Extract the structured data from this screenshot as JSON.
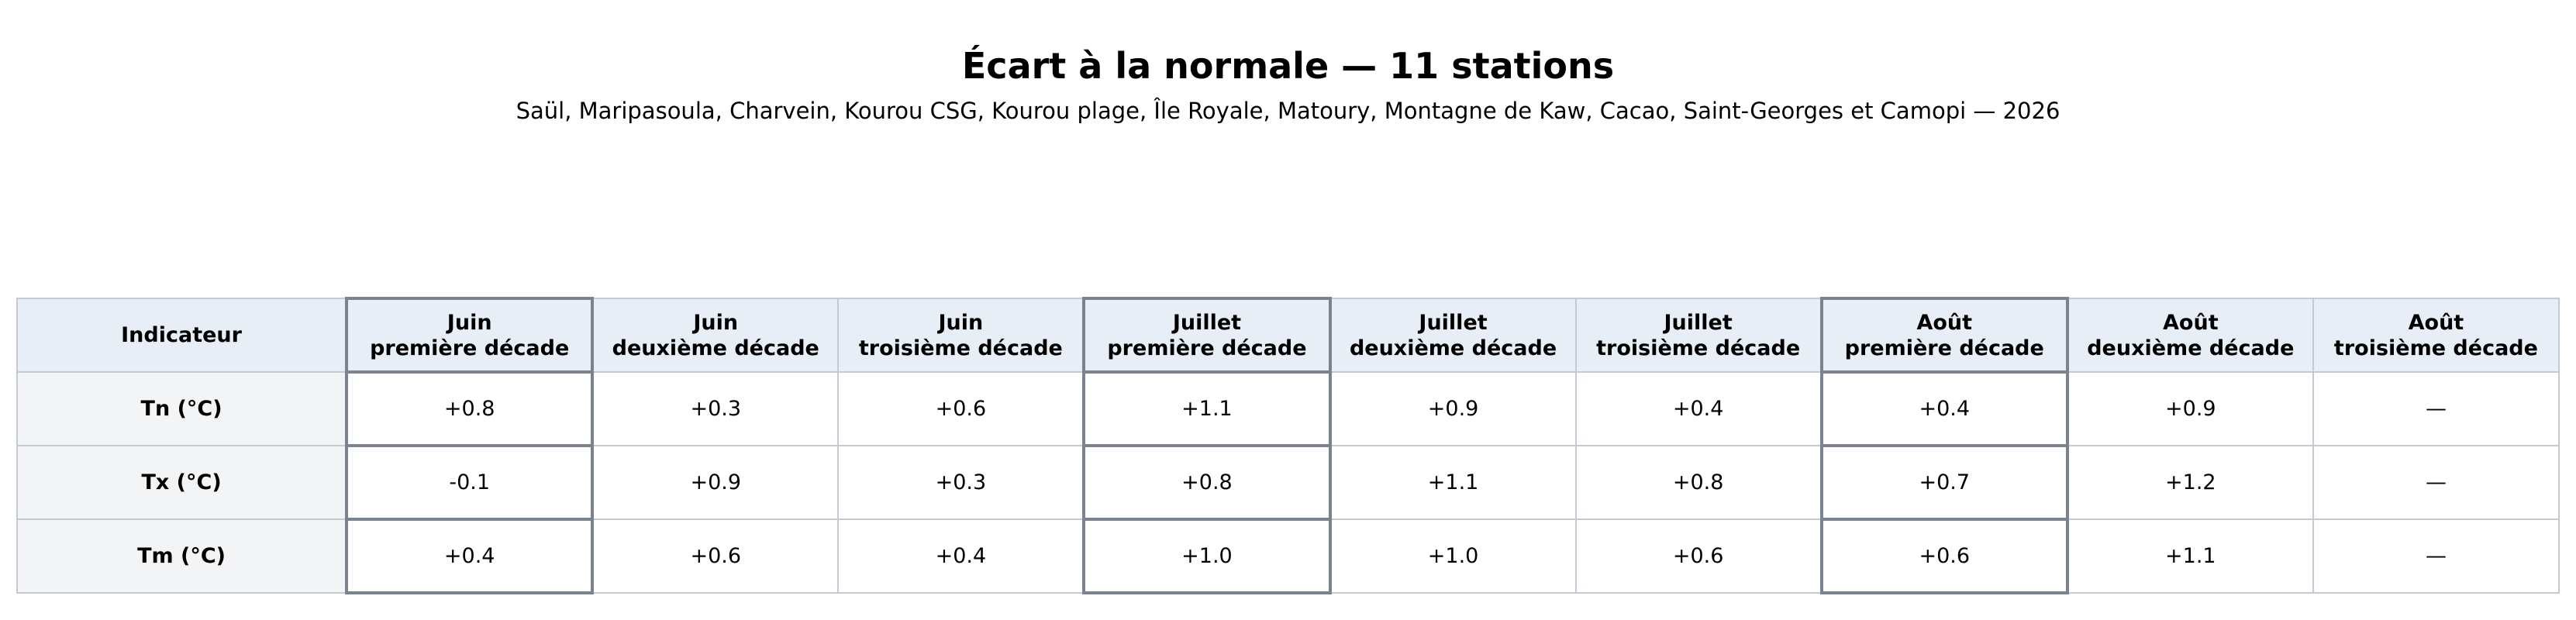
{
  "header": {
    "title": "Écart à la normale — 11 stations",
    "subtitle": "Saül, Maripasoula, Charvein, Kourou CSG, Kourou plage, Île Royale, Matoury, Montagne de Kaw, Cacao, Saint-Georges et Camopi — 2026"
  },
  "table": {
    "corner": "Indicateur",
    "columns": [
      {
        "month": "Juin",
        "decade": "première décade"
      },
      {
        "month": "Juin",
        "decade": "deuxième décade"
      },
      {
        "month": "Juin",
        "decade": "troisième décade"
      },
      {
        "month": "Juillet",
        "decade": "première décade"
      },
      {
        "month": "Juillet",
        "decade": "deuxième décade"
      },
      {
        "month": "Juillet",
        "decade": "troisième décade"
      },
      {
        "month": "Août",
        "decade": "première décade"
      },
      {
        "month": "Août",
        "decade": "deuxième décade"
      },
      {
        "month": "Août",
        "decade": "troisième décade"
      }
    ],
    "rows": [
      {
        "label": "Tn (°C)",
        "cells": [
          "+0.8",
          "+0.3",
          "+0.6",
          "+1.1",
          "+0.9",
          "+0.4",
          "+0.4",
          "+0.9",
          "—"
        ]
      },
      {
        "label": "Tx (°C)",
        "cells": [
          "-0.1",
          "+0.9",
          "+0.3",
          "+0.8",
          "+1.1",
          "+0.8",
          "+0.7",
          "+1.2",
          "—"
        ]
      },
      {
        "label": "Tm (°C)",
        "cells": [
          "+0.4",
          "+0.6",
          "+0.4",
          "+1.0",
          "+1.0",
          "+0.6",
          "+0.6",
          "+1.1",
          "—"
        ]
      }
    ]
  }
}
